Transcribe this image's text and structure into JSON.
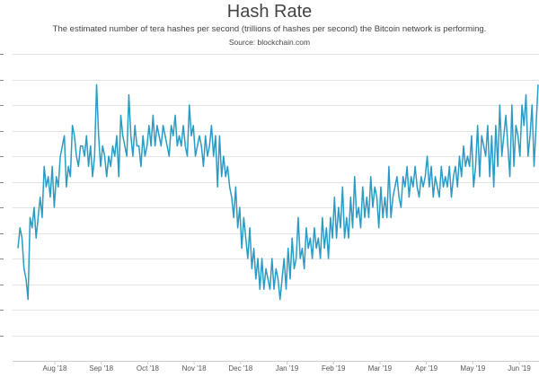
{
  "chart_data": {
    "type": "line",
    "title": "Hash Rate",
    "subtitle": "The estimated number of tera hashes per second (trillions of hashes per second) the Bitcoin network is performing.",
    "source": "Source: blockchain.com",
    "xlabel": "",
    "ylabel": "",
    "x_tick_labels": [
      "Aug '18",
      "Sep '18",
      "Oct '18",
      "Nov '18",
      "Dec '18",
      "Jan '19",
      "Feb '19",
      "Mar '19",
      "Apr '19",
      "May '19",
      "Jun '19"
    ],
    "grid": true,
    "line_color": "#2a9bc4",
    "series": [
      {
        "values": [
          41,
          43,
          42,
          39,
          38,
          36,
          44,
          43,
          45,
          42,
          44,
          46,
          44,
          49,
          47,
          48,
          46,
          49,
          45,
          48,
          47,
          50,
          51,
          52,
          47,
          49,
          48,
          53,
          52,
          50,
          49,
          51,
          51,
          50,
          52,
          49,
          51,
          48,
          50,
          57,
          52,
          49,
          51,
          50,
          48,
          50,
          49,
          51,
          50,
          52,
          48,
          54,
          52,
          51,
          50,
          56,
          52,
          50,
          53,
          51,
          51,
          49,
          52,
          50,
          51,
          53,
          51,
          54,
          51,
          53,
          52,
          51,
          53,
          52,
          51,
          50,
          53,
          52,
          54,
          51,
          52,
          51,
          53,
          51,
          50,
          55,
          52,
          53,
          50,
          51,
          52,
          51,
          49,
          52,
          50,
          51,
          53,
          50,
          52,
          47,
          52,
          48,
          50,
          48,
          49,
          47,
          46,
          44,
          47,
          43,
          45,
          41,
          44,
          42,
          40,
          43,
          39,
          41,
          38,
          40,
          37,
          40,
          37,
          39,
          38,
          37,
          40,
          37,
          39,
          38,
          36,
          38,
          40,
          37,
          41,
          38,
          42,
          39,
          40,
          44,
          40,
          41,
          39,
          43,
          41,
          42,
          40,
          43,
          41,
          42,
          40,
          44,
          41,
          43,
          40,
          44,
          42,
          46,
          42,
          45,
          43,
          47,
          42,
          44,
          42,
          46,
          43,
          48,
          44,
          45,
          43,
          47,
          44,
          46,
          44,
          48,
          45,
          47,
          46,
          43,
          47,
          44,
          46,
          44,
          49,
          44,
          46,
          47,
          48,
          46,
          45,
          48,
          47,
          49,
          46,
          48,
          47,
          49,
          47,
          46,
          48,
          47,
          48,
          50,
          47,
          49,
          46,
          48,
          47,
          46,
          49,
          47,
          48,
          47,
          49,
          46,
          48,
          49,
          47,
          50,
          48,
          51,
          49,
          50,
          49,
          52,
          47,
          49,
          53,
          48,
          52,
          51,
          50,
          53,
          48,
          52,
          47,
          53,
          49,
          55,
          50,
          52,
          54,
          51,
          48,
          55,
          49,
          53,
          52,
          50,
          55,
          53,
          56,
          50,
          52,
          55,
          49,
          53,
          57
        ]
      }
    ]
  }
}
